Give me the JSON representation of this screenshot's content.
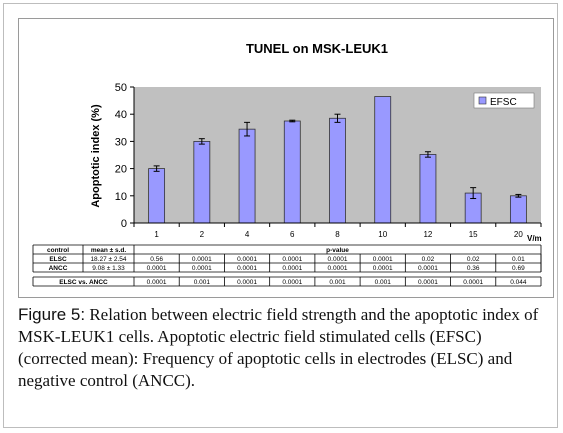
{
  "chart_data": {
    "type": "bar",
    "title": "TUNEL on MSK-LEUK1",
    "ylabel": "Apoptotic index (%)",
    "xunit": "V/m",
    "ylim": [
      0,
      50
    ],
    "yticks": [
      0,
      10,
      20,
      30,
      40,
      50
    ],
    "grid": false,
    "legend_position": "top-right",
    "colors": {
      "bar": "#9999ff",
      "plot_bg": "#c0c0c0",
      "bar_edge": "#333333"
    },
    "categories": [
      "1",
      "2",
      "4",
      "6",
      "8",
      "10",
      "12",
      "15",
      "20"
    ],
    "series": [
      {
        "name": "EFSC",
        "values": [
          20,
          30,
          34.5,
          37.5,
          38.5,
          46.5,
          25.2,
          11,
          10
        ],
        "errors": [
          1,
          1,
          2.5,
          0.3,
          1.5,
          0,
          1,
          2,
          0.5
        ]
      }
    ]
  },
  "table": {
    "headers": [
      "control",
      "mean ± s.d.",
      "p-value"
    ],
    "rows": [
      {
        "label": "ELSC",
        "mean": "18.27 ± 2.54",
        "values": [
          "0.56",
          "0.0001",
          "0.0001",
          "0.0001",
          "0.0001",
          "0.0001",
          "0.02",
          "0.02",
          "0.01"
        ]
      },
      {
        "label": "ANCC",
        "mean": "9.08 ± 1.33",
        "values": [
          "0.0001",
          "0.0001",
          "0.0001",
          "0.0001",
          "0.0001",
          "0.0001",
          "0.0001",
          "0.36",
          "0.69"
        ]
      }
    ],
    "comparison": {
      "label": "ELSC vs. ANCC",
      "values": [
        "0.0001",
        "0.001",
        "0.0001",
        "0.0001",
        "0.001",
        "0.001",
        "0.0001",
        "0.0001",
        "0.044"
      ]
    }
  },
  "caption": {
    "label": "Figure 5:",
    "text": " Relation between electric field strength and the apoptotic index of MSK-LEUK1 cells. Apoptotic electric field stimulated cells (EFSC) (corrected mean): Frequency of apoptotic cells in electrodes (ELSC) and negative control (ANCC)."
  }
}
